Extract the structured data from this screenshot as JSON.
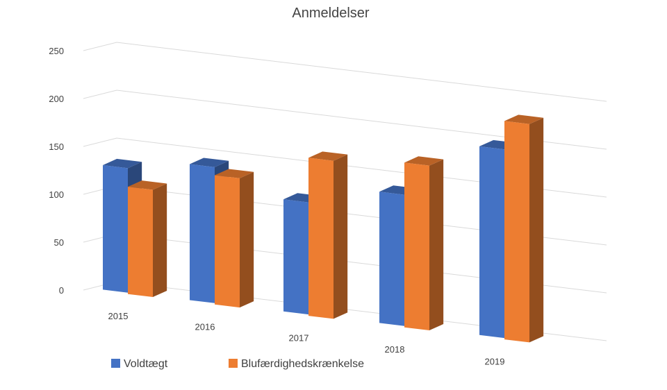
{
  "chart_data": {
    "type": "bar",
    "style": "3d-clustered-column",
    "title": "Anmeldelser",
    "xlabel": "",
    "ylabel": "",
    "categories": [
      "2015",
      "2016",
      "2017",
      "2018",
      "2019"
    ],
    "y_ticks": [
      "0",
      "50",
      "100",
      "150",
      "200",
      "250"
    ],
    "ylim": [
      0,
      250
    ],
    "grid": true,
    "legend_position": "bottom-left",
    "series": [
      {
        "name": "Voldtægt",
        "values": [
          130,
          142,
          117,
          137,
          197
        ],
        "color": "#4472C4"
      },
      {
        "name": "Blufærdighedskrænkelse",
        "values": [
          112,
          135,
          165,
          172,
          228
        ],
        "color": "#ED7D31"
      }
    ]
  }
}
